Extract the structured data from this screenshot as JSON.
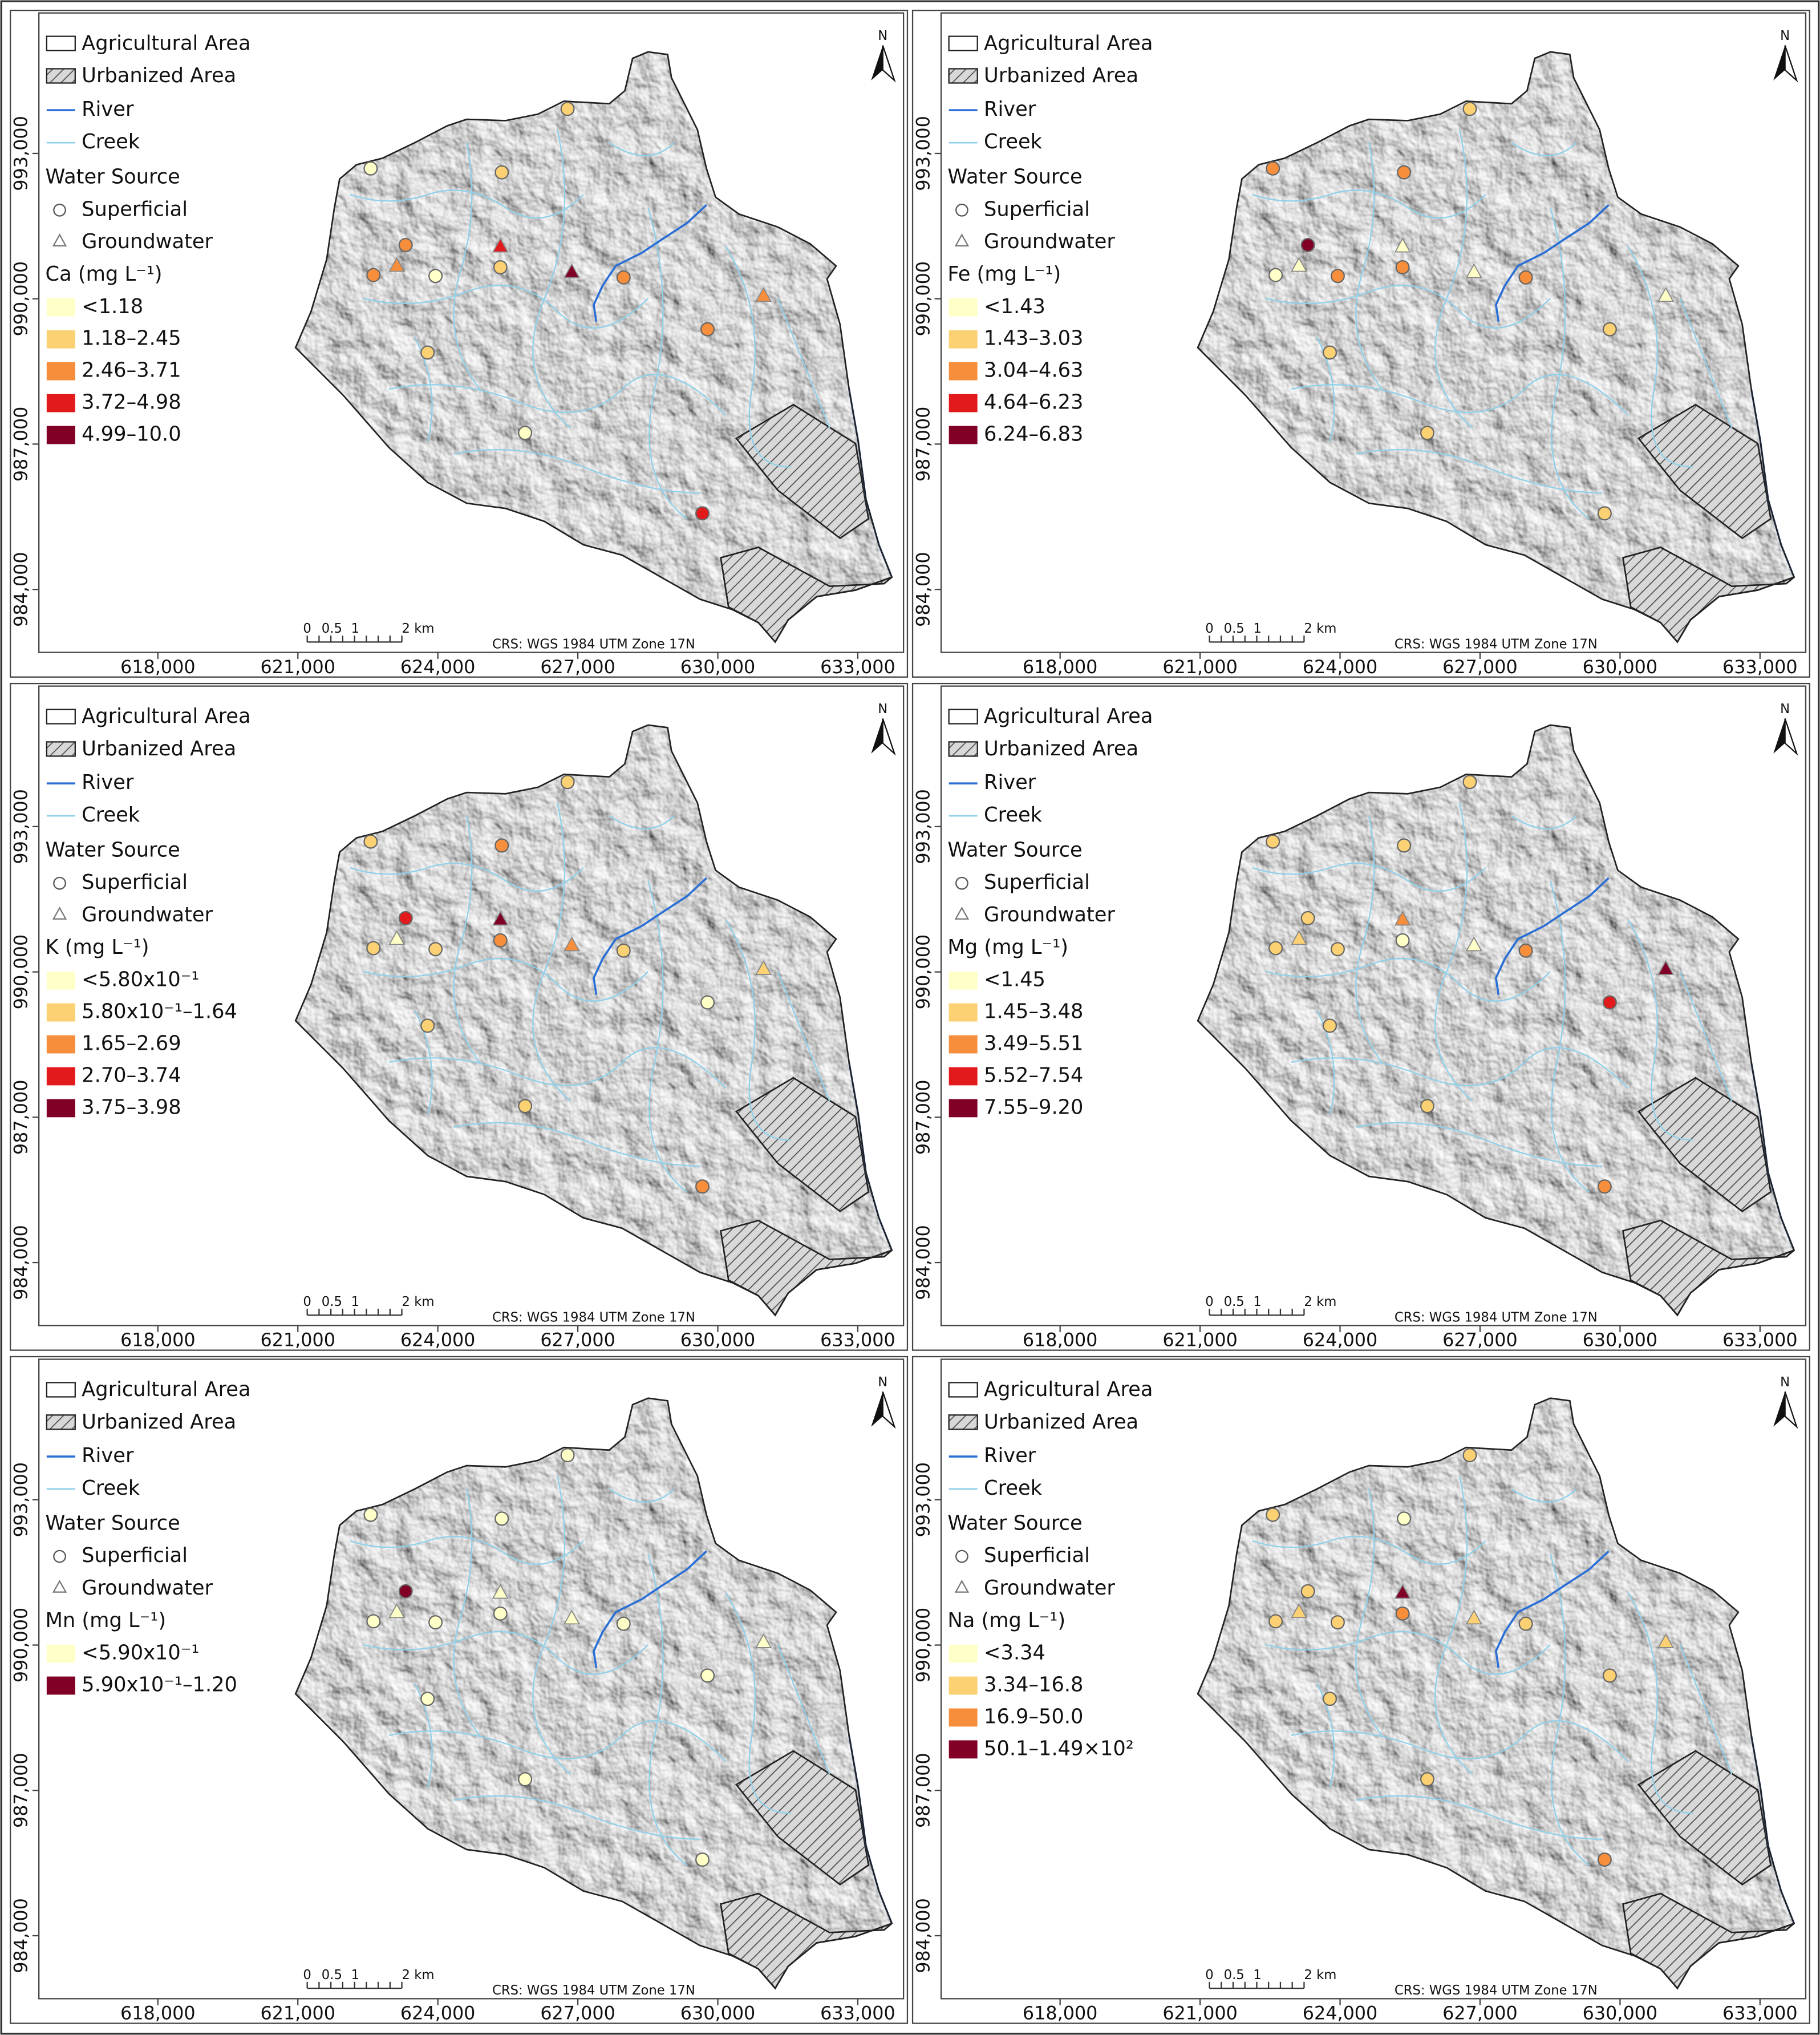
{
  "map": {
    "xlim": [
      615450,
      633980
    ],
    "ylim": [
      982700,
      995900
    ],
    "xticks": [
      {
        "value": 618000,
        "label": "618,000"
      },
      {
        "value": 621000,
        "label": "621,000"
      },
      {
        "value": 624000,
        "label": "624,000"
      },
      {
        "value": 627000,
        "label": "627,000"
      },
      {
        "value": 630000,
        "label": "630,000"
      },
      {
        "value": 633000,
        "label": "633,000"
      }
    ],
    "yticks": [
      {
        "value": 984000,
        "label": "984,000"
      },
      {
        "value": 987000,
        "label": "987,000"
      },
      {
        "value": 990000,
        "label": "990,000"
      },
      {
        "value": 993000,
        "label": "993,000"
      }
    ],
    "legend": {
      "agricultural": "Agricultural Area",
      "urbanized": "Urbanized Area",
      "river": "River",
      "creek": "Creek",
      "source_title": "Water Source",
      "superficial": "Superficial",
      "groundwater": "Groundwater"
    },
    "north": "N",
    "scale_bar": [
      "0",
      "0.5",
      "1",
      "2 km"
    ],
    "crs": "CRS: WGS 1984 UTM Zone 17N",
    "panels": [
      {
        "parameter": "Ca (mg L⁻¹)",
        "classes": [
          {
            "label": "<1.18",
            "color": "#ffffc8",
            "superficial": [
              [
                622560,
                992690
              ],
              [
                623950,
                990470
              ],
              [
                625870,
                987230
              ]
            ],
            "groundwater": []
          },
          {
            "label": "1.18–2.45",
            "color": "#fbd173",
            "superficial": [
              [
                626780,
                993920
              ],
              [
                625370,
                992610
              ],
              [
                625340,
                990650
              ],
              [
                623780,
                988890
              ]
            ],
            "groundwater": []
          },
          {
            "label": "2.46–3.71",
            "color": "#f68e3c",
            "superficial": [
              [
                623310,
                991110
              ],
              [
                622620,
                990490
              ],
              [
                627980,
                990440
              ],
              [
                629780,
                989370
              ]
            ],
            "groundwater": [
              [
                623120,
                990680
              ],
              [
                630980,
                990060
              ]
            ]
          },
          {
            "label": "3.72–4.98",
            "color": "#e31a1c",
            "superficial": [
              [
                629670,
                985570
              ]
            ],
            "groundwater": [
              [
                625340,
                991080
              ]
            ]
          },
          {
            "label": "4.99–10.0",
            "color": "#800026",
            "superficial": [],
            "groundwater": [
              [
                626870,
                990550
              ]
            ]
          }
        ]
      },
      {
        "parameter": "Fe (mg L⁻¹)",
        "classes": [
          {
            "label": "<1.43",
            "color": "#ffffc8",
            "superficial": [
              [
                622620,
                990490
              ]
            ],
            "groundwater": [
              [
                623120,
                990680
              ],
              [
                625340,
                991080
              ],
              [
                626870,
                990550
              ],
              [
                630980,
                990060
              ]
            ]
          },
          {
            "label": "1.43–3.03",
            "color": "#fbd173",
            "superficial": [
              [
                626780,
                993920
              ],
              [
                629780,
                989370
              ],
              [
                623780,
                988890
              ],
              [
                625870,
                987230
              ],
              [
                629670,
                985570
              ]
            ],
            "groundwater": []
          },
          {
            "label": "3.04–4.63",
            "color": "#f68e3c",
            "superficial": [
              [
                622560,
                992690
              ],
              [
                625370,
                992610
              ],
              [
                623950,
                990470
              ],
              [
                625340,
                990650
              ],
              [
                627980,
                990440
              ]
            ],
            "groundwater": []
          },
          {
            "label": "4.64–6.23",
            "color": "#e31a1c",
            "superficial": [],
            "groundwater": []
          },
          {
            "label": "6.24–6.83",
            "color": "#800026",
            "superficial": [
              [
                623310,
                991110
              ]
            ],
            "groundwater": []
          }
        ]
      },
      {
        "parameter": "K (mg L⁻¹)",
        "classes": [
          {
            "label": "<5.80x10⁻¹",
            "color": "#ffffc8",
            "superficial": [
              [
                629780,
                989370
              ]
            ],
            "groundwater": [
              [
                623120,
                990680
              ]
            ]
          },
          {
            "label": "5.80x10⁻¹–1.64",
            "color": "#fbd173",
            "superficial": [
              [
                622560,
                992690
              ],
              [
                626780,
                993920
              ],
              [
                622620,
                990490
              ],
              [
                623950,
                990470
              ],
              [
                627980,
                990440
              ],
              [
                623780,
                988890
              ],
              [
                625870,
                987230
              ]
            ],
            "groundwater": [
              [
                630980,
                990060
              ]
            ]
          },
          {
            "label": "1.65–2.69",
            "color": "#f68e3c",
            "superficial": [
              [
                625370,
                992610
              ],
              [
                625340,
                990650
              ],
              [
                629670,
                985570
              ]
            ],
            "groundwater": [
              [
                626870,
                990550
              ]
            ]
          },
          {
            "label": "2.70–3.74",
            "color": "#e31a1c",
            "superficial": [
              [
                623310,
                991110
              ]
            ],
            "groundwater": []
          },
          {
            "label": "3.75–3.98",
            "color": "#800026",
            "superficial": [],
            "groundwater": [
              [
                625340,
                991080
              ]
            ]
          }
        ]
      },
      {
        "parameter": "Mg (mg L⁻¹)",
        "classes": [
          {
            "label": "<1.45",
            "color": "#ffffc8",
            "superficial": [
              [
                625340,
                990650
              ]
            ],
            "groundwater": [
              [
                626870,
                990550
              ]
            ]
          },
          {
            "label": "1.45–3.48",
            "color": "#fbd173",
            "superficial": [
              [
                622560,
                992690
              ],
              [
                626780,
                993920
              ],
              [
                625370,
                992610
              ],
              [
                623310,
                991110
              ],
              [
                622620,
                990490
              ],
              [
                623950,
                990470
              ],
              [
                623780,
                988890
              ],
              [
                625870,
                987230
              ]
            ],
            "groundwater": [
              [
                623120,
                990680
              ]
            ]
          },
          {
            "label": "3.49–5.51",
            "color": "#f68e3c",
            "superficial": [
              [
                627980,
                990440
              ],
              [
                629670,
                985570
              ]
            ],
            "groundwater": [
              [
                625340,
                991080
              ]
            ]
          },
          {
            "label": "5.52–7.54",
            "color": "#e31a1c",
            "superficial": [
              [
                629780,
                989370
              ]
            ],
            "groundwater": []
          },
          {
            "label": "7.55–9.20",
            "color": "#800026",
            "superficial": [],
            "groundwater": [
              [
                630980,
                990060
              ]
            ]
          }
        ]
      },
      {
        "parameter": "Mn (mg L⁻¹)",
        "classes": [
          {
            "label": "<5.90x10⁻¹",
            "color": "#ffffc8",
            "superficial": [
              [
                622560,
                992690
              ],
              [
                626780,
                993920
              ],
              [
                625370,
                992610
              ],
              [
                622620,
                990490
              ],
              [
                623950,
                990470
              ],
              [
                625340,
                990650
              ],
              [
                627980,
                990440
              ],
              [
                629780,
                989370
              ],
              [
                623780,
                988890
              ],
              [
                625870,
                987230
              ],
              [
                629670,
                985570
              ]
            ],
            "groundwater": [
              [
                623120,
                990680
              ],
              [
                625340,
                991080
              ],
              [
                626870,
                990550
              ],
              [
                630980,
                990060
              ]
            ]
          },
          {
            "label": "5.90x10⁻¹–1.20",
            "color": "#800026",
            "superficial": [
              [
                623310,
                991110
              ]
            ],
            "groundwater": []
          }
        ]
      },
      {
        "parameter": "Na (mg L⁻¹)",
        "classes": [
          {
            "label": "<3.34",
            "color": "#ffffc8",
            "superficial": [
              [
                625370,
                992610
              ]
            ],
            "groundwater": []
          },
          {
            "label": "3.34–16.8",
            "color": "#fbd173",
            "superficial": [
              [
                622560,
                992690
              ],
              [
                626780,
                993920
              ],
              [
                623310,
                991110
              ],
              [
                622620,
                990490
              ],
              [
                623950,
                990470
              ],
              [
                627980,
                990440
              ],
              [
                629780,
                989370
              ],
              [
                623780,
                988890
              ],
              [
                625870,
                987230
              ]
            ],
            "groundwater": [
              [
                623120,
                990680
              ],
              [
                626870,
                990550
              ],
              [
                630980,
                990060
              ]
            ]
          },
          {
            "label": "16.9–50.0",
            "color": "#f68e3c",
            "superficial": [
              [
                625340,
                990650
              ],
              [
                629670,
                985570
              ]
            ],
            "groundwater": []
          },
          {
            "label": "50.1–1.49×10²",
            "color": "#800026",
            "superficial": [],
            "groundwater": [
              [
                625340,
                991080
              ]
            ]
          }
        ]
      }
    ]
  }
}
